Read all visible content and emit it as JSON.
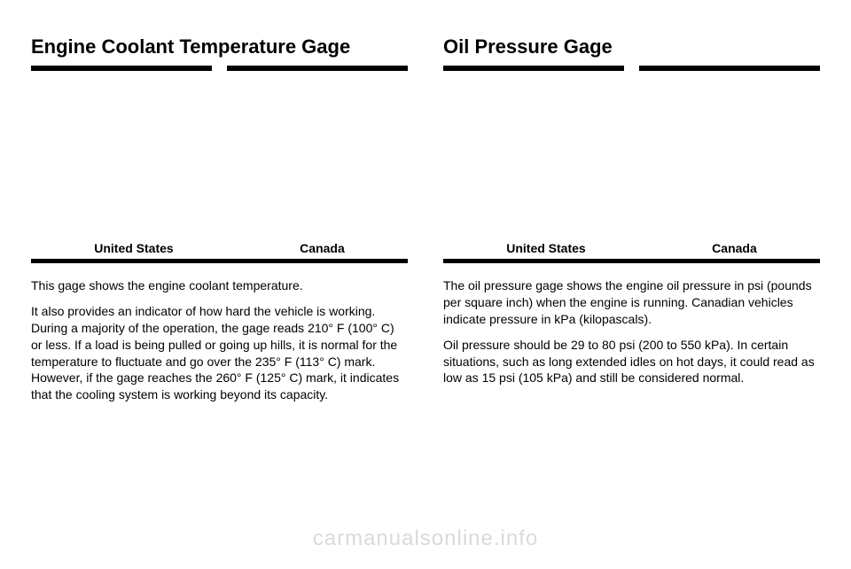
{
  "left": {
    "title": "Engine Coolant Temperature Gage",
    "caption_us": "United States",
    "caption_ca": "Canada",
    "para1": "This gage shows the engine coolant temperature.",
    "para2": "It also provides an indicator of how hard the vehicle is working. During a majority of the operation, the gage reads 210° F (100° C) or less. If a load is being pulled or going up hills, it is normal for the temperature to fluctuate and go over the 235° F (113° C) mark. However, if the gage reaches the 260° F (125° C) mark, it indicates that the cooling system is working beyond its capacity."
  },
  "right": {
    "title": "Oil Pressure Gage",
    "caption_us": "United States",
    "caption_ca": "Canada",
    "para1": "The oil pressure gage shows the engine oil pressure in psi (pounds per square inch) when the engine is running. Canadian vehicles indicate pressure in kPa (kilopascals).",
    "para2": "Oil pressure should be 29 to 80 psi (200 to 550 kPa). In certain situations, such as long extended idles on hot days, it could read as low as 15 psi (105 kPa) and still be considered normal."
  },
  "watermark": "carmanualsonline.info"
}
